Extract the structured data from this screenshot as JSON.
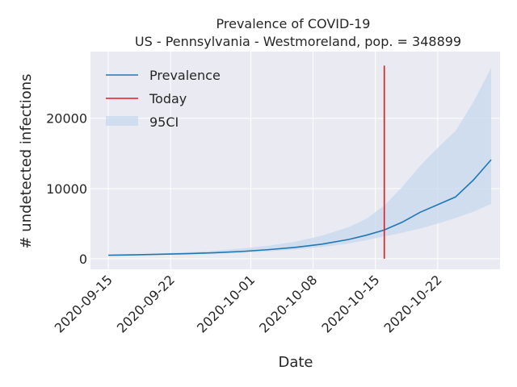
{
  "chart_data": {
    "type": "line",
    "title": "Prevalence of COVID-19",
    "subtitle": "US - Pennsylvania - Westmoreland, pop. = 348899",
    "xlabel": "Date",
    "ylabel": "# undetected infections",
    "xlim": [
      "2020-09-13",
      "2020-10-29"
    ],
    "ylim": [
      -1500,
      29500
    ],
    "x_ticks": [
      "2020-09-15",
      "2020-09-22",
      "2020-10-01",
      "2020-10-08",
      "2020-10-15",
      "2020-10-22"
    ],
    "y_ticks": [
      0,
      10000,
      20000
    ],
    "y_tick_labels": [
      "0",
      "10000",
      "20000"
    ],
    "grid": true,
    "legend_position": "top-left",
    "colors": {
      "background": "#eaeaf2",
      "grid": "#ffffff",
      "prevalence": "#1f77b4",
      "today": "#e41a1c",
      "band": "#c6d8ec"
    },
    "today": {
      "name": "Today",
      "date": "2020-10-16",
      "y_range": [
        0,
        27500
      ]
    },
    "series": [
      {
        "name": "Prevalence",
        "x": [
          "2020-09-15",
          "2020-09-18",
          "2020-09-21",
          "2020-09-24",
          "2020-09-27",
          "2020-09-30",
          "2020-10-03",
          "2020-10-06",
          "2020-10-09",
          "2020-10-12",
          "2020-10-14",
          "2020-10-16",
          "2020-10-18",
          "2020-10-20",
          "2020-10-22",
          "2020-10-24",
          "2020-10-26",
          "2020-10-28"
        ],
        "values": [
          500,
          560,
          640,
          730,
          860,
          1040,
          1300,
          1620,
          2080,
          2750,
          3360,
          4100,
          5200,
          6600,
          7700,
          8800,
          11200,
          14100
        ]
      },
      {
        "name": "95CI",
        "x": [
          "2020-09-15",
          "2020-09-18",
          "2020-09-21",
          "2020-09-24",
          "2020-09-27",
          "2020-09-30",
          "2020-10-03",
          "2020-10-06",
          "2020-10-09",
          "2020-10-12",
          "2020-10-14",
          "2020-10-16",
          "2020-10-18",
          "2020-10-20",
          "2020-10-22",
          "2020-10-24",
          "2020-10-26",
          "2020-10-28"
        ],
        "lower": [
          450,
          490,
          550,
          620,
          720,
          860,
          1060,
          1320,
          1670,
          2180,
          2650,
          3200,
          3700,
          4300,
          5000,
          5800,
          6700,
          7800
        ],
        "upper": [
          560,
          650,
          780,
          940,
          1150,
          1450,
          1860,
          2430,
          3300,
          4500,
          5700,
          7600,
          10200,
          13200,
          15800,
          18200,
          22300,
          27200
        ]
      }
    ]
  }
}
